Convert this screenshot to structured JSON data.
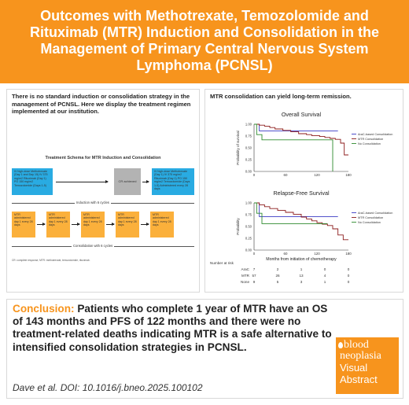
{
  "header": {
    "title": "Outcomes with Methotrexate, Temozolomide and Rituximab (MTR) Induction and Consolidation in the Management of Primary Central Nervous System Lymphoma (PCNSL)"
  },
  "left_panel": {
    "intro": "There is no standard induction or consolidation strategy in the management of PCNSL. Here we display the treatment regimen implemented at our institution.",
    "schema_title": "Treatment Schema for MTR Induction and Consolidation",
    "induction_box_1": "IV high-dose Methotrexate (Day 1 and Day 15) IV 375 mg/m2 Rituximab (Day 1) PO 150 mg/m2 Temozolomide (Days 1-5)",
    "cr_box": "CR achieved",
    "induction_box_2": "IV high-dose Methotrexate (Day 1) IV 375 mg/m2 Rituximab (Day 1) PO 150 mg/m2 Temozolomide (Days 1-5) Administered every 28 days",
    "induction_label": "Induction with 6 cycles",
    "consolidation_boxes": [
      "MTR administered day 1 every 28 days",
      "MTR administered day 1 every 28 days",
      "MTR administered day 1 every 28 days",
      "MTR administered day 1 every 28 days",
      "MTR administered day 1 every 28 days"
    ],
    "consolidation_label": "Consolidation with 6 cycles",
    "footnote": "CR: complete response; MTR: methotrexate, temozolomide, rituximab."
  },
  "right_panel": {
    "title": "MTR consolidation can yield long-term remission."
  },
  "chart_data": [
    {
      "type": "line",
      "title": "Overall Survival",
      "ylabel": "Probability of survival",
      "xlabel": "",
      "xlim": [
        0,
        180
      ],
      "ylim": [
        0,
        1
      ],
      "x_ticks": [
        "0",
        "60",
        "120",
        "180"
      ],
      "y_ticks": [
        "0.00",
        "0.25",
        "0.50",
        "0.75",
        "1.00"
      ],
      "legend": [
        "AraC-based Consolidation",
        "MTR Consolidation",
        "No Consolidation"
      ],
      "legend_position": "right",
      "series": [
        {
          "name": "AraC-based Consolidation",
          "color": "#3a3ac4",
          "x": [
            0,
            10,
            30,
            60,
            100,
            160
          ],
          "y": [
            1.0,
            0.86,
            0.86,
            0.86,
            0.86,
            0.86
          ]
        },
        {
          "name": "MTR Consolidation",
          "color": "#8b1a1a",
          "x": [
            0,
            10,
            20,
            30,
            40,
            55,
            70,
            85,
            100,
            110,
            125,
            135,
            145,
            155,
            165,
            172,
            180
          ],
          "y": [
            1.0,
            0.98,
            0.96,
            0.93,
            0.9,
            0.87,
            0.84,
            0.8,
            0.78,
            0.76,
            0.74,
            0.72,
            0.7,
            0.68,
            0.6,
            0.35,
            0.35
          ]
        },
        {
          "name": "No Consolidation",
          "color": "#2e8b2e",
          "x": [
            0,
            5,
            15,
            30,
            60,
            100,
            145,
            150
          ],
          "y": [
            1.0,
            0.78,
            0.67,
            0.67,
            0.67,
            0.67,
            0.67,
            0.0
          ]
        }
      ]
    },
    {
      "type": "line",
      "title": "Relapse-Free Survival",
      "ylabel": "Probability",
      "xlabel": "Months from initiation of chemotherapy",
      "xlim": [
        0,
        180
      ],
      "ylim": [
        0,
        1
      ],
      "x_ticks": [
        "0",
        "60",
        "120",
        "180"
      ],
      "y_ticks": [
        "0.00",
        "0.25",
        "0.50",
        "0.75",
        "1.00"
      ],
      "legend": [
        "AraC-based Consolidation",
        "MTR Consolidation",
        "No Consolidation"
      ],
      "legend_position": "right",
      "series": [
        {
          "name": "AraC-based Consolidation",
          "color": "#3a3ac4",
          "x": [
            0,
            10,
            30,
            80,
            120,
            160
          ],
          "y": [
            1.0,
            0.71,
            0.71,
            0.71,
            0.71,
            0.71
          ]
        },
        {
          "name": "MTR Consolidation",
          "color": "#8b1a1a",
          "x": [
            0,
            10,
            20,
            30,
            45,
            60,
            75,
            90,
            100,
            110,
            120,
            130,
            140,
            150,
            160,
            170,
            180
          ],
          "y": [
            1.0,
            0.96,
            0.92,
            0.88,
            0.84,
            0.8,
            0.76,
            0.7,
            0.66,
            0.62,
            0.58,
            0.55,
            0.52,
            0.45,
            0.32,
            0.22,
            0.22
          ]
        },
        {
          "name": "No Consolidation",
          "color": "#2e8b2e",
          "x": [
            0,
            5,
            15,
            30,
            60,
            100,
            140
          ],
          "y": [
            1.0,
            0.78,
            0.56,
            0.56,
            0.56,
            0.56,
            0.56
          ]
        }
      ]
    }
  ],
  "risk_table": {
    "label": "Number at risk",
    "rows": [
      {
        "name": "AraC",
        "values": [
          "7",
          "2",
          "1",
          "0",
          "0"
        ]
      },
      {
        "name": "MTR",
        "values": [
          "57",
          "26",
          "13",
          "4",
          "0"
        ]
      },
      {
        "name": "None",
        "values": [
          "9",
          "5",
          "3",
          "1",
          "0"
        ]
      }
    ]
  },
  "conclusion": {
    "label": "Conclusion:",
    "text": "Patients who complete 1 year of MTR have an OS of 143 months and PFS of 122 months and there were no treatment-related deaths indicating MTR is a safe alternative to intensified consolidation strategies in PCNSL.",
    "citation": "Dave et al. DOI: 10.1016/j.bneo.2025.100102"
  },
  "logo": {
    "line1": "blood",
    "line2": "neoplasia",
    "line3": "Visual",
    "line4": "Abstract",
    "color": "#f7941d"
  },
  "colors": {
    "accent": "#f7941d",
    "blue_box": "#29abe2",
    "yellow_box": "#fbb03b",
    "gray_box": "#b3b3b3"
  }
}
